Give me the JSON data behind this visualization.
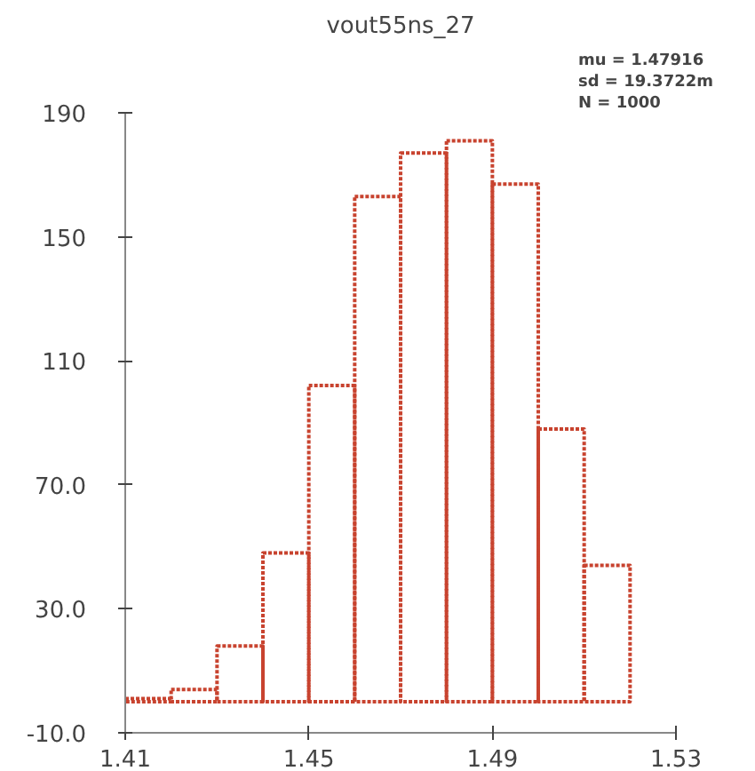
{
  "chart_data": {
    "type": "histogram",
    "title": "vout55ns_27",
    "bins": [
      1.41,
      1.42,
      1.43,
      1.44,
      1.45,
      1.46,
      1.47,
      1.48,
      1.49,
      1.5,
      1.51,
      1.52
    ],
    "values": [
      1,
      4,
      18,
      48,
      102,
      163,
      177,
      181,
      167,
      88,
      44
    ],
    "color": "#c8432f",
    "line_style": "dotted",
    "xlim": [
      1.41,
      1.53
    ],
    "xticks": [
      1.41,
      1.45,
      1.49,
      1.53
    ],
    "ylim": [
      -10,
      190
    ],
    "yticks": [
      {
        "value": -10,
        "label": "-10.0"
      },
      {
        "value": 30,
        "label": "30.0"
      },
      {
        "value": 70,
        "label": "70.0"
      },
      110,
      150,
      190
    ],
    "annotations": [
      "mu = 1.47916",
      "sd = 19.3722m",
      "N = 1000"
    ],
    "grid": false
  }
}
